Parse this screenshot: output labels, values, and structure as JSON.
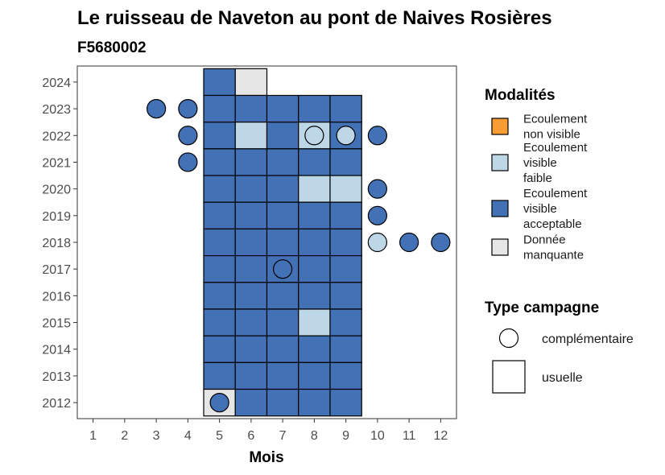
{
  "chart_data": {
    "type": "heatmap",
    "title": "Le ruisseau de Naveton au pont de Naives Rosières",
    "subtitle": "F5680002",
    "xlabel": "Mois",
    "ylabel": "",
    "x_ticks": [
      "1",
      "2",
      "3",
      "4",
      "5",
      "6",
      "7",
      "8",
      "9",
      "10",
      "11",
      "12"
    ],
    "y_ticks": [
      "2012",
      "2013",
      "2014",
      "2015",
      "2016",
      "2017",
      "2018",
      "2019",
      "2020",
      "2021",
      "2022",
      "2023",
      "2024"
    ],
    "xlim": [
      0.5,
      12.5
    ],
    "ylim": [
      2011.4,
      2024.6
    ],
    "grid": false,
    "legend_placement": "right",
    "colors": {
      "non_visible": "#F89D34",
      "faible": "#BDD7E7",
      "acceptable": "#4271B5",
      "manquante": "#E6E6E6"
    },
    "legend_modalites": {
      "title": "Modalités",
      "items": [
        {
          "key": "non_visible",
          "lines": [
            "Ecoulement",
            "non visible"
          ]
        },
        {
          "key": "faible",
          "lines": [
            "Ecoulement",
            "visible",
            "faible"
          ]
        },
        {
          "key": "acceptable",
          "lines": [
            "Ecoulement",
            "visible",
            "acceptable"
          ]
        },
        {
          "key": "manquante",
          "lines": [
            "Donnée",
            "manquante"
          ]
        }
      ]
    },
    "legend_campagne": {
      "title": "Type campagne",
      "items": [
        {
          "shape": "circle",
          "label": "complémentaire"
        },
        {
          "shape": "square",
          "label": "usuelle"
        }
      ]
    },
    "usuelle": [
      {
        "year": 2024,
        "cells": {
          "5": "acceptable",
          "6": "manquante"
        }
      },
      {
        "year": 2023,
        "cells": {
          "5": "acceptable",
          "6": "acceptable",
          "7": "acceptable",
          "8": "acceptable",
          "9": "acceptable"
        }
      },
      {
        "year": 2022,
        "cells": {
          "5": "acceptable",
          "6": "faible",
          "7": "acceptable",
          "8": "faible",
          "9": "acceptable"
        }
      },
      {
        "year": 2021,
        "cells": {
          "5": "acceptable",
          "6": "acceptable",
          "7": "acceptable",
          "8": "acceptable",
          "9": "acceptable"
        }
      },
      {
        "year": 2020,
        "cells": {
          "5": "acceptable",
          "6": "acceptable",
          "7": "acceptable",
          "8": "faible",
          "9": "faible"
        }
      },
      {
        "year": 2019,
        "cells": {
          "5": "acceptable",
          "6": "acceptable",
          "7": "acceptable",
          "8": "acceptable",
          "9": "acceptable"
        }
      },
      {
        "year": 2018,
        "cells": {
          "5": "acceptable",
          "6": "acceptable",
          "7": "acceptable",
          "8": "acceptable",
          "9": "acceptable"
        }
      },
      {
        "year": 2017,
        "cells": {
          "5": "acceptable",
          "6": "acceptable",
          "7": "acceptable",
          "8": "acceptable",
          "9": "acceptable"
        }
      },
      {
        "year": 2016,
        "cells": {
          "5": "acceptable",
          "6": "acceptable",
          "7": "acceptable",
          "8": "acceptable",
          "9": "acceptable"
        }
      },
      {
        "year": 2015,
        "cells": {
          "5": "acceptable",
          "6": "acceptable",
          "7": "acceptable",
          "8": "faible",
          "9": "acceptable"
        }
      },
      {
        "year": 2014,
        "cells": {
          "5": "acceptable",
          "6": "acceptable",
          "7": "acceptable",
          "8": "acceptable",
          "9": "acceptable"
        }
      },
      {
        "year": 2013,
        "cells": {
          "5": "acceptable",
          "6": "acceptable",
          "7": "acceptable",
          "8": "acceptable",
          "9": "acceptable"
        }
      },
      {
        "year": 2012,
        "cells": {
          "5": "manquante",
          "6": "acceptable",
          "7": "acceptable",
          "8": "acceptable",
          "9": "acceptable"
        }
      }
    ],
    "complementaire": [
      {
        "year": 2023,
        "month": 3,
        "value": "acceptable"
      },
      {
        "year": 2023,
        "month": 4,
        "value": "acceptable"
      },
      {
        "year": 2022,
        "month": 4,
        "value": "acceptable"
      },
      {
        "year": 2022,
        "month": 8,
        "value": "faible"
      },
      {
        "year": 2022,
        "month": 9,
        "value": "faible"
      },
      {
        "year": 2022,
        "month": 10,
        "value": "acceptable"
      },
      {
        "year": 2021,
        "month": 4,
        "value": "acceptable"
      },
      {
        "year": 2020,
        "month": 10,
        "value": "acceptable"
      },
      {
        "year": 2019,
        "month": 10,
        "value": "acceptable"
      },
      {
        "year": 2018,
        "month": 10,
        "value": "faible"
      },
      {
        "year": 2018,
        "month": 11,
        "value": "acceptable"
      },
      {
        "year": 2018,
        "month": 12,
        "value": "acceptable"
      },
      {
        "year": 2017,
        "month": 7,
        "value": "acceptable"
      },
      {
        "year": 2012,
        "month": 5,
        "value": "acceptable"
      }
    ]
  }
}
